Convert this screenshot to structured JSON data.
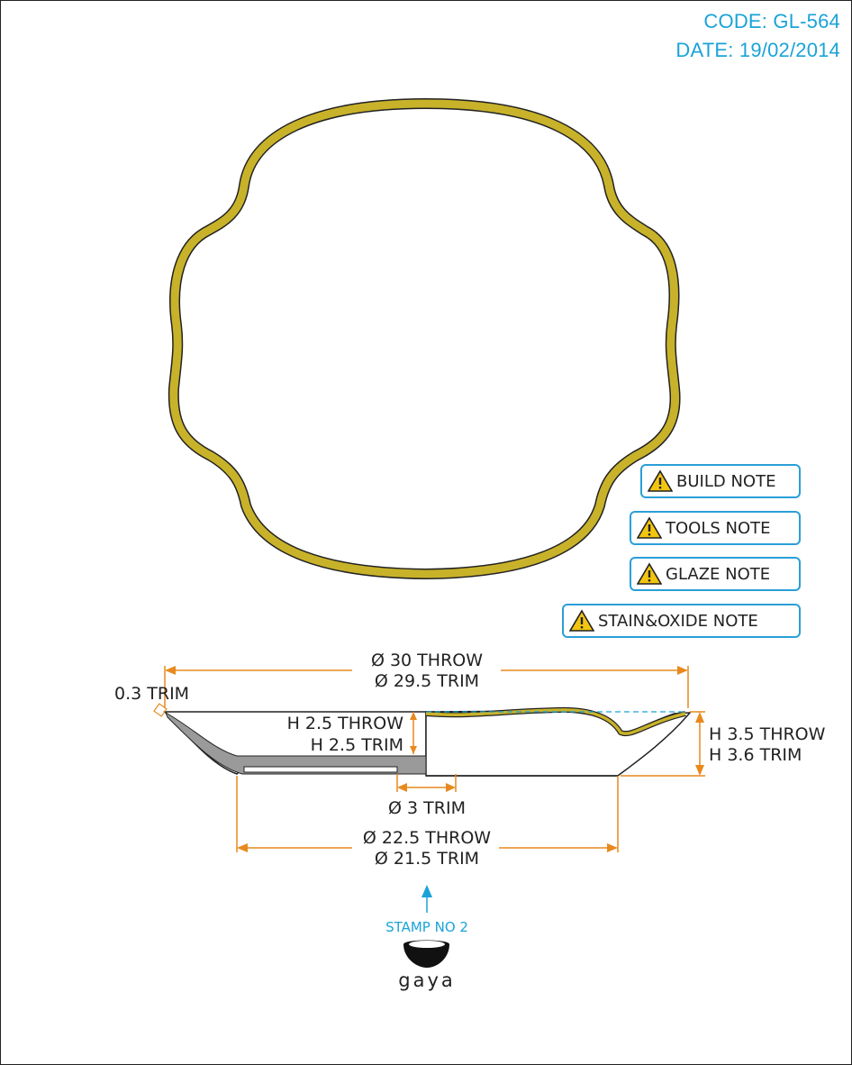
{
  "header": {
    "code": "CODE: GL-564",
    "date": "DATE: 19/02/2014"
  },
  "notes": [
    {
      "label": "BUILD NOTE"
    },
    {
      "label": "TOOLS NOTE"
    },
    {
      "label": "GLAZE NOTE"
    },
    {
      "label": "STAIN&OXIDE NOTE"
    }
  ],
  "dimensions": {
    "diameter_throw": "Ø 30 THROW",
    "diameter_trim": "Ø 29.5 TRIM",
    "rim_trim": "0.3 TRIM",
    "inner_height_throw": "H 2.5 THROW",
    "inner_height_trim": "H 2.5 TRIM",
    "height_throw": "H 3.5 THROW",
    "height_trim": "H 3.6 TRIM",
    "foot_width_trim": "Ø 3 TRIM",
    "base_throw": "Ø 22.5 THROW",
    "base_trim": "Ø 21.5 TRIM"
  },
  "stamp": {
    "label": "STAMP NO 2",
    "logo_text": "gaya"
  },
  "colors": {
    "glaze": "#c8b22a",
    "dimension": "#e8891e",
    "accent": "#1aa3d8",
    "outline": "#222222"
  }
}
